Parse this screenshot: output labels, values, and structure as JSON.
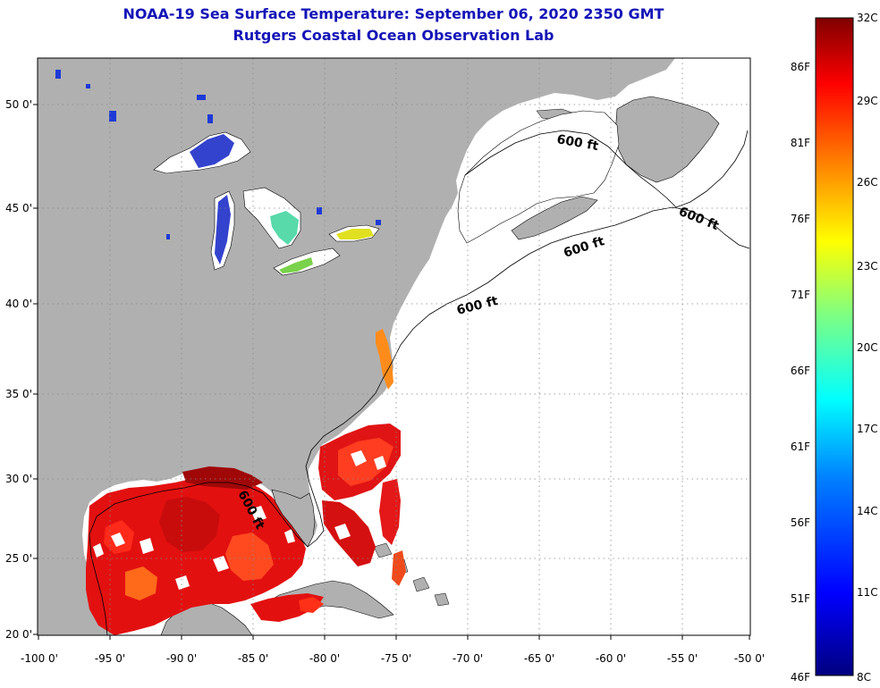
{
  "title": {
    "line1": "NOAA-19 Sea Surface Temperature:  September 06, 2020 2350 GMT",
    "line2": "Rutgers Coastal Ocean Observation Lab"
  },
  "map": {
    "lon_ticks": [
      "-100 0'",
      "-95 0'",
      "-90 0'",
      "-85 0'",
      "-80 0'",
      "-75 0'",
      "-70 0'",
      "-65 0'",
      "-60 0'",
      "-55 0'",
      "-50 0'"
    ],
    "lat_ticks": [
      "50 0'",
      "45 0'",
      "40 0'",
      "35 0'",
      "30 0'",
      "25 0'",
      "20 0'"
    ],
    "contour_label": "600 ft",
    "colors": {
      "land": "#b0b0b0",
      "no_data": "#ffffff",
      "grid": "#888888"
    }
  },
  "colorbar": {
    "celsius_labels": [
      "32C",
      "29C",
      "26C",
      "23C",
      "20C",
      "17C",
      "14C",
      "11C",
      "8C"
    ],
    "fahrenheit_labels": [
      "86F",
      "81F",
      "76F",
      "71F",
      "66F",
      "61F",
      "56F",
      "51F",
      "46F"
    ],
    "stops": [
      "#00007f",
      "#0000ff",
      "#0080ff",
      "#00ffff",
      "#80ff80",
      "#ffff00",
      "#ff8000",
      "#ff0000",
      "#7f0000"
    ]
  }
}
